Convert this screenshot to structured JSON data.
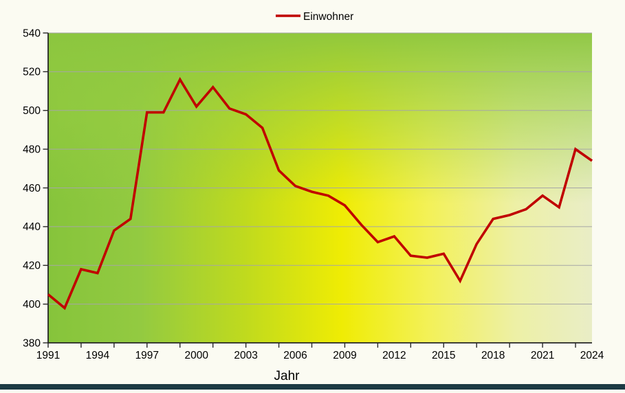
{
  "page": {
    "background": "#FBFBF2",
    "bottom_bar_color": "#1C3A43"
  },
  "chart_data": {
    "type": "line",
    "title": "",
    "legend": "Einwohner",
    "xlabel": "Jahr",
    "ylabel": "",
    "series_color": "#C00000",
    "axis_color": "#262626",
    "gridline_color": "#A6A6A6",
    "text_color": "#000000",
    "x": [
      1991,
      1992,
      1993,
      1994,
      1995,
      1996,
      1997,
      1998,
      1999,
      2000,
      2001,
      2002,
      2003,
      2004,
      2005,
      2006,
      2007,
      2008,
      2009,
      2010,
      2011,
      2012,
      2013,
      2014,
      2015,
      2016,
      2017,
      2018,
      2019,
      2020,
      2021,
      2022,
      2023,
      2024
    ],
    "values": [
      405,
      398,
      418,
      416,
      438,
      444,
      499,
      499,
      516,
      502,
      512,
      501,
      498,
      491,
      469,
      461,
      458,
      456,
      451,
      441,
      432,
      435,
      425,
      424,
      426,
      412,
      431,
      444,
      446,
      449,
      456,
      450,
      480,
      474
    ],
    "ylim": [
      380,
      540
    ],
    "ytick_step": 20,
    "yticks": [
      380,
      400,
      420,
      440,
      460,
      480,
      500,
      520,
      540
    ],
    "xlim": [
      1991,
      2024
    ],
    "x_labels": [
      1991,
      1994,
      1997,
      2000,
      2003,
      2006,
      2009,
      2012,
      2015,
      2018,
      2021,
      2024
    ],
    "x_tick_interval": 2,
    "grid": true,
    "legend_position": "top-center",
    "plot_gradient": {
      "horizontal": [
        [
          0,
          "#86C43B",
          1
        ],
        [
          0.17,
          "#93CA41",
          1
        ],
        [
          0.36,
          "#BFDA1E",
          1
        ],
        [
          0.54,
          "#EFEC04",
          1
        ],
        [
          0.7,
          "#F3F158",
          1
        ],
        [
          0.86,
          "#EDF0A6",
          1
        ],
        [
          1,
          "#E9EDC6",
          1
        ]
      ],
      "vertical_overlay": [
        [
          0,
          "#8CC63F",
          0.95
        ],
        [
          0.28,
          "#97CD42",
          0.5
        ],
        [
          0.55,
          "#97CD42",
          0
        ]
      ]
    }
  }
}
